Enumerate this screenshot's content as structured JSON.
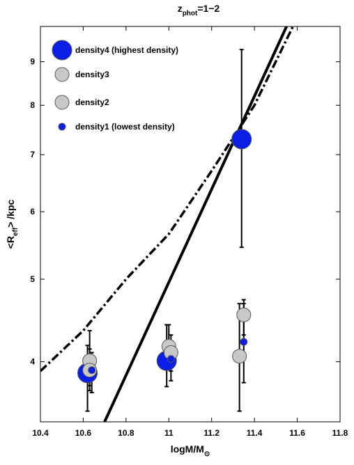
{
  "chart_data": {
    "type": "scatter",
    "title": {
      "main": "z",
      "sub": "phot",
      "rest": "=1−2"
    },
    "xlabel": {
      "main": "logM/M",
      "sub": "⊙"
    },
    "ylabel": {
      "pre": "<R",
      "sub": "eff",
      "post": "> /kpc"
    },
    "x_ticks": [
      "10.4",
      "10.6",
      "10.8",
      "11",
      "11.2",
      "11.4",
      "11.6",
      "11.8"
    ],
    "y_ticks": [
      "4",
      "5",
      "6",
      "7",
      "8",
      "9"
    ],
    "xlim": [
      10.4,
      11.8
    ],
    "ylim": [
      3.4,
      9.9
    ],
    "y_scale": "log",
    "legend_position": "top-left",
    "series": [
      {
        "name": "density4 (highest density)",
        "color": "#0a1ee6",
        "marker_size": "large",
        "points": [
          {
            "x": 10.62,
            "y": 3.88,
            "ylo": 3.5,
            "yhi": 4.18
          },
          {
            "x": 10.99,
            "y": 4.01,
            "ylo": 3.74,
            "yhi": 4.42
          },
          {
            "x": 11.34,
            "y": 7.3,
            "ylo": 5.45,
            "yhi": 9.3
          }
        ]
      },
      {
        "name": "density3",
        "color": "#c8c8c8",
        "marker_size": "medium",
        "points": [
          {
            "x": 10.63,
            "y": 4.01,
            "ylo": 3.75,
            "yhi": 4.35
          },
          {
            "x": 11.0,
            "y": 4.17,
            "ylo": 3.92,
            "yhi": 4.42
          },
          {
            "x": 11.35,
            "y": 4.54,
            "ylo": 4.3,
            "yhi": 4.73
          }
        ]
      },
      {
        "name": "density2",
        "color": "#c8c8c8",
        "marker_size": "medium",
        "points": [
          {
            "x": 10.63,
            "y": 3.91,
            "ylo": 3.7,
            "yhi": 4.14
          },
          {
            "x": 11.01,
            "y": 4.1,
            "ylo": 3.9,
            "yhi": 4.3
          },
          {
            "x": 11.33,
            "y": 4.06,
            "ylo": 3.5,
            "yhi": 4.68
          }
        ]
      },
      {
        "name": "density1 (lowest density)",
        "color": "#0a1ee6",
        "marker_size": "small",
        "points": [
          {
            "x": 10.64,
            "y": 3.91,
            "ylo": 3.68,
            "yhi": 4.1
          },
          {
            "x": 11.01,
            "y": 4.03,
            "ylo": 3.8,
            "yhi": 4.2
          },
          {
            "x": 11.35,
            "y": 4.22,
            "ylo": 3.78,
            "yhi": 4.68
          }
        ]
      }
    ],
    "lines": [
      {
        "style": "solid",
        "points": [
          [
            10.7,
            3.4
          ],
          [
            11.55,
            9.9
          ]
        ]
      },
      {
        "style": "dash-dot",
        "points": [
          [
            10.4,
            3.9
          ],
          [
            10.6,
            4.35
          ],
          [
            10.8,
            5.0
          ],
          [
            11.0,
            5.65
          ],
          [
            11.2,
            6.7
          ],
          [
            11.4,
            8.0
          ],
          [
            11.58,
            9.9
          ]
        ]
      }
    ]
  }
}
